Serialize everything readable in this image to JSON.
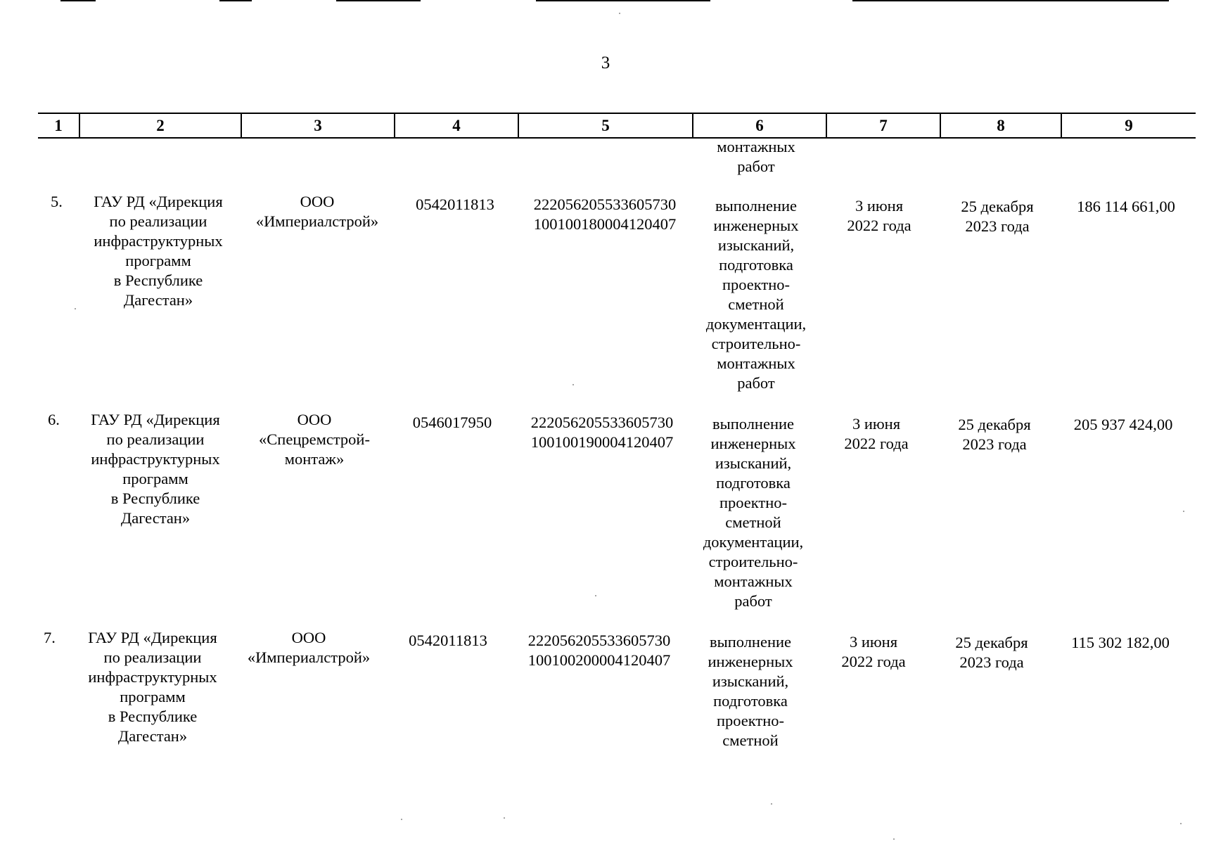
{
  "page_number": "3",
  "header_columns": [
    "1",
    "2",
    "3",
    "4",
    "5",
    "6",
    "7",
    "8",
    "9"
  ],
  "continuation": {
    "col6": "монтажных\nработ"
  },
  "rows": [
    {
      "num": "5.",
      "customer": "ГАУ РД «Дирекция\nпо реализации\nинфраструктурных\nпрограмм\nв Республике\nДагестан»",
      "contractor": "ООО\n«Империалстрой»",
      "inn": "0542011813",
      "code": "222056205533605730\n100100180004120407",
      "work": "выполнение\nинженерных\nизысканий,\nподготовка\nпроектно-\nсметной\nдокументации,\nстроительно-\nмонтажных\nработ",
      "start": "3 июня\n2022 года",
      "end": "25 декабря\n2023 года",
      "amount": "186 114 661,00"
    },
    {
      "num": "6.",
      "customer": "ГАУ РД «Дирекция\nпо реализации\nинфраструктурных\nпрограмм\nв Республике\nДагестан»",
      "contractor": "ООО\n«Спецремстрой-\nмонтаж»",
      "inn": "0546017950",
      "code": "222056205533605730\n100100190004120407",
      "work": "выполнение\nинженерных\nизысканий,\nподготовка\nпроектно-\nсметной\nдокументации,\nстроительно-\nмонтажных\nработ",
      "start": "3 июня\n2022 года",
      "end": "25 декабря\n2023 года",
      "amount": "205 937 424,00"
    },
    {
      "num": "7.",
      "customer": "ГАУ РД «Дирекция\nпо реализации\nинфраструктурных\nпрограмм\nв Республике\nДагестан»",
      "contractor": "ООО\n«Империалстрой»",
      "inn": "0542011813",
      "code": "222056205533605730\n100100200004120407",
      "work": "выполнение\nинженерных\nизысканий,\nподготовка\nпроектно-\nсметной",
      "start": "3 июня\n2022 года",
      "end": "25 декабря\n2023 года",
      "amount": "115 302 182,00"
    }
  ]
}
